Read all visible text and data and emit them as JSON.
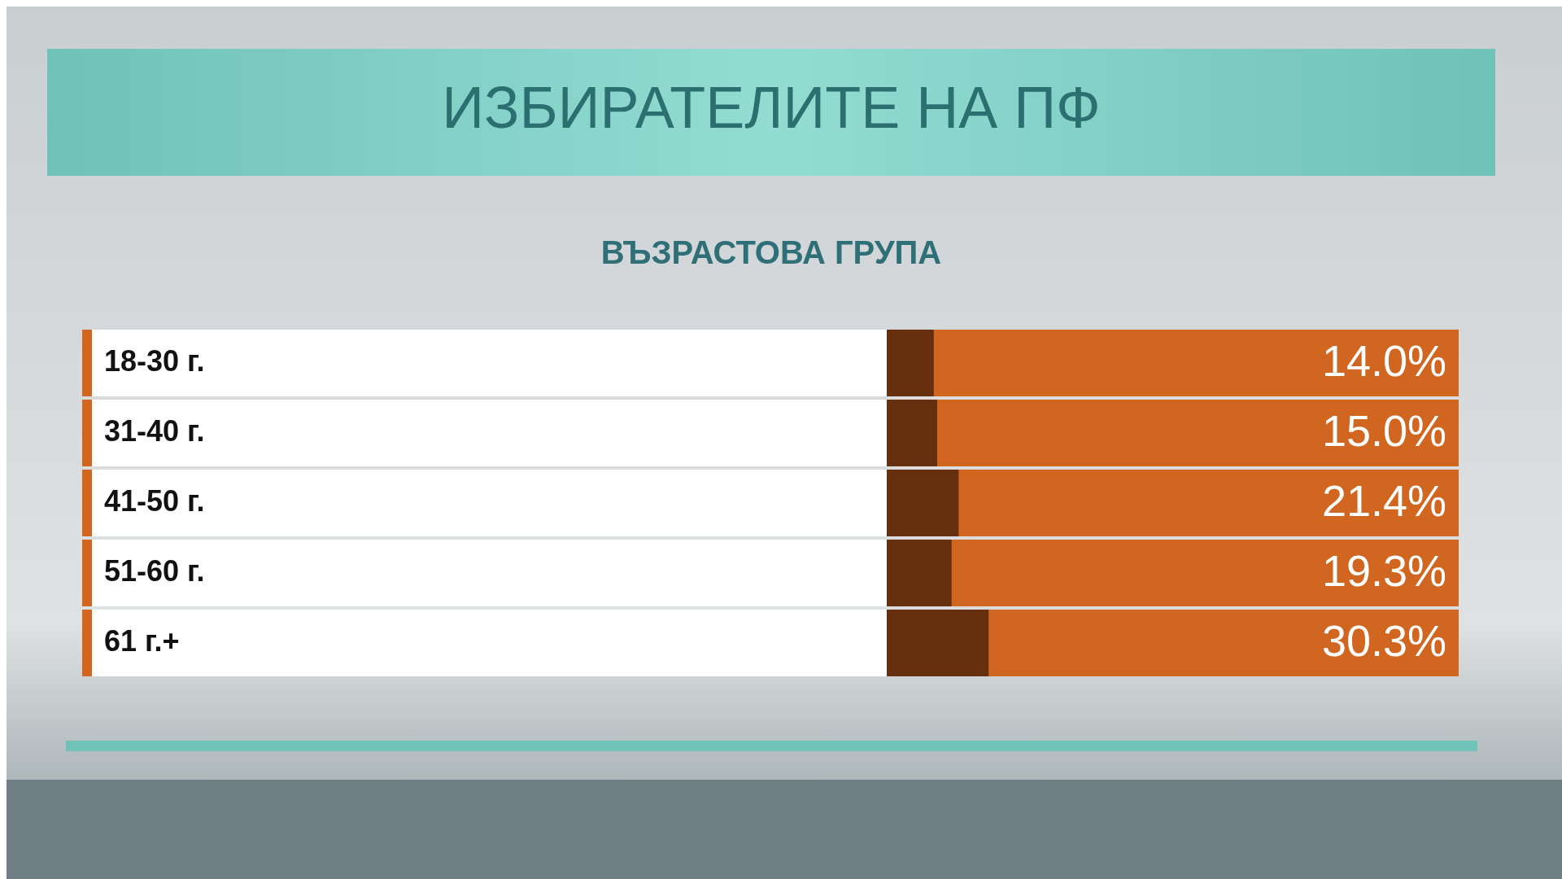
{
  "chart_data": {
    "type": "bar",
    "orientation": "horizontal",
    "title": "ИЗБИРАТЕЛИТЕ НА ПФ",
    "subtitle": "ВЪЗРАСТОВА ГРУПА",
    "categories": [
      "18-30 г.",
      "31-40 г.",
      "41-50 г.",
      "51-60 г.",
      "61 г.+"
    ],
    "values": [
      14.0,
      15.0,
      21.4,
      19.3,
      30.3
    ],
    "value_labels": [
      "14.0%",
      "15.0%",
      "21.4%",
      "19.3%",
      "30.3%"
    ],
    "color": "#66300e"
  }
}
